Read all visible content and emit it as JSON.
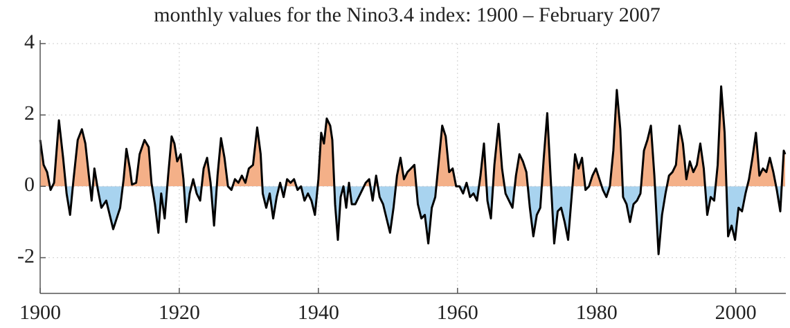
{
  "chart_data": {
    "type": "area-line",
    "title": "monthly values for the Nino3.4 index: 1900 – February 2007",
    "x": [
      1900,
      1900.5,
      1901,
      1901.5,
      1902,
      1902.7,
      1903.3,
      1903.8,
      1904.3,
      1904.8,
      1905.4,
      1906,
      1906.5,
      1907,
      1907.4,
      1907.8,
      1908.3,
      1908.8,
      1909.5,
      1910,
      1910.5,
      1911,
      1911.5,
      1912,
      1912.4,
      1912.9,
      1913.2,
      1913.8,
      1914.3,
      1915,
      1915.6,
      1916,
      1916.5,
      1917,
      1917.4,
      1917.9,
      1918.4,
      1918.9,
      1919.3,
      1919.7,
      1920.2,
      1920.6,
      1921,
      1921.5,
      1922,
      1922.5,
      1923,
      1923.5,
      1924,
      1924.5,
      1925,
      1925.5,
      1926,
      1926.5,
      1927,
      1927.5,
      1928,
      1928.5,
      1929,
      1929.5,
      1930,
      1930.6,
      1931.2,
      1931.7,
      1932,
      1932.5,
      1933,
      1933.5,
      1934,
      1934.5,
      1935,
      1935.5,
      1936,
      1936.5,
      1937,
      1937.5,
      1938,
      1938.5,
      1939,
      1939.5,
      1940,
      1940.4,
      1940.8,
      1941.2,
      1941.7,
      1942,
      1942.4,
      1942.8,
      1943.2,
      1943.6,
      1944,
      1944.4,
      1944.8,
      1945.3,
      1945.8,
      1946.3,
      1946.8,
      1947.3,
      1947.8,
      1948.3,
      1948.8,
      1949.3,
      1949.8,
      1950.3,
      1950.8,
      1951.3,
      1951.8,
      1952.3,
      1952.8,
      1953.3,
      1953.8,
      1954.3,
      1954.8,
      1955.3,
      1955.8,
      1956.3,
      1956.8,
      1957.3,
      1957.8,
      1958.3,
      1958.8,
      1959.3,
      1959.8,
      1960.3,
      1960.8,
      1961.3,
      1961.8,
      1962.3,
      1962.8,
      1963.3,
      1963.8,
      1964.3,
      1964.8,
      1965.3,
      1965.9,
      1966.4,
      1966.9,
      1967.4,
      1967.9,
      1968.4,
      1968.9,
      1969.4,
      1969.9,
      1970.4,
      1970.9,
      1971.4,
      1971.9,
      1972.4,
      1972.9,
      1973.4,
      1973.9,
      1974.4,
      1974.9,
      1975.4,
      1975.9,
      1976.4,
      1976.9,
      1977.4,
      1977.9,
      1978.4,
      1978.9,
      1979.4,
      1979.9,
      1980.4,
      1980.9,
      1981.4,
      1981.9,
      1982.4,
      1982.9,
      1983.4,
      1983.8,
      1984.3,
      1984.8,
      1985.3,
      1985.8,
      1986.3,
      1986.8,
      1987.3,
      1987.8,
      1988.3,
      1988.9,
      1989.4,
      1989.9,
      1990.4,
      1990.9,
      1991.4,
      1991.9,
      1992.4,
      1992.9,
      1993.4,
      1993.9,
      1994.4,
      1994.9,
      1995.4,
      1995.9,
      1996.4,
      1996.9,
      1997.4,
      1997.9,
      1998.4,
      1998.9,
      1999.4,
      1999.9,
      2000.4,
      2000.9,
      2001.4,
      2001.9,
      2002.4,
      2002.9,
      2003.4,
      2003.9,
      2004.4,
      2004.9,
      2005.4,
      2005.9,
      2006.4,
      2006.9,
      2007.1
    ],
    "values": [
      1.3,
      0.6,
      0.4,
      -0.1,
      0.1,
      1.85,
      0.8,
      -0.2,
      -0.8,
      0.2,
      1.3,
      1.6,
      1.2,
      0.3,
      -0.4,
      0.5,
      -0.1,
      -0.6,
      -0.4,
      -0.8,
      -1.2,
      -0.9,
      -0.6,
      0.2,
      1.05,
      0.5,
      0.05,
      0.1,
      0.9,
      1.3,
      1.1,
      0.1,
      -0.5,
      -1.3,
      -0.2,
      -0.9,
      0.3,
      1.4,
      1.2,
      0.7,
      0.9,
      0.2,
      -1.0,
      -0.2,
      0.2,
      -0.2,
      -0.4,
      0.5,
      0.8,
      0.1,
      -1.1,
      0.3,
      1.35,
      0.8,
      0.0,
      -0.1,
      0.2,
      0.1,
      0.3,
      0.1,
      0.5,
      0.6,
      1.65,
      0.9,
      -0.2,
      -0.6,
      -0.2,
      -0.9,
      -0.3,
      0.1,
      -0.3,
      0.2,
      0.1,
      0.2,
      -0.1,
      0.0,
      -0.4,
      -0.2,
      -0.4,
      -0.8,
      0.2,
      1.5,
      1.2,
      1.9,
      1.7,
      1.3,
      -0.5,
      -1.5,
      -0.3,
      0.0,
      -0.6,
      0.1,
      -0.5,
      -0.5,
      -0.3,
      -0.1,
      0.1,
      0.2,
      -0.4,
      0.3,
      -0.3,
      -0.5,
      -0.9,
      -1.3,
      -0.6,
      0.3,
      0.8,
      0.2,
      0.4,
      0.5,
      0.6,
      -0.5,
      -0.9,
      -0.8,
      -1.6,
      -0.6,
      -0.3,
      0.7,
      1.7,
      1.4,
      0.4,
      0.5,
      0.0,
      0.0,
      -0.2,
      0.1,
      -0.3,
      -0.2,
      -0.4,
      0.3,
      1.2,
      -0.4,
      -0.9,
      0.6,
      1.75,
      0.5,
      -0.2,
      -0.4,
      -0.6,
      0.3,
      0.9,
      0.7,
      0.4,
      -0.6,
      -1.4,
      -0.8,
      -0.6,
      0.8,
      2.05,
      0.2,
      -1.6,
      -0.7,
      -0.6,
      -1.0,
      -1.5,
      -0.3,
      0.9,
      0.5,
      0.8,
      -0.1,
      0.0,
      0.3,
      0.5,
      0.2,
      -0.1,
      -0.3,
      0.0,
      1.0,
      2.7,
      1.6,
      -0.3,
      -0.5,
      -1.0,
      -0.5,
      -0.4,
      -0.2,
      1.0,
      1.3,
      1.7,
      0.3,
      -1.9,
      -0.8,
      -0.2,
      0.3,
      0.4,
      0.6,
      1.7,
      1.2,
      0.2,
      0.7,
      0.4,
      0.6,
      1.2,
      0.5,
      -0.8,
      -0.3,
      -0.4,
      0.6,
      2.8,
      1.5,
      -1.4,
      -1.1,
      -1.5,
      -0.6,
      -0.7,
      -0.2,
      0.2,
      0.8,
      1.5,
      0.3,
      0.5,
      0.4,
      0.8,
      0.4,
      -0.1,
      -0.7,
      1.0,
      0.9
    ],
    "xlim": [
      1900,
      2007.2
    ],
    "xticks": [
      1900,
      1920,
      1940,
      1960,
      1980,
      2000
    ],
    "ylim": [
      -3,
      4
    ],
    "yticks": [
      -2,
      0,
      2,
      4
    ],
    "grid": true,
    "line_color": "#000000",
    "positive_color": "#f4b088",
    "negative_color": "#a8d3ef"
  }
}
